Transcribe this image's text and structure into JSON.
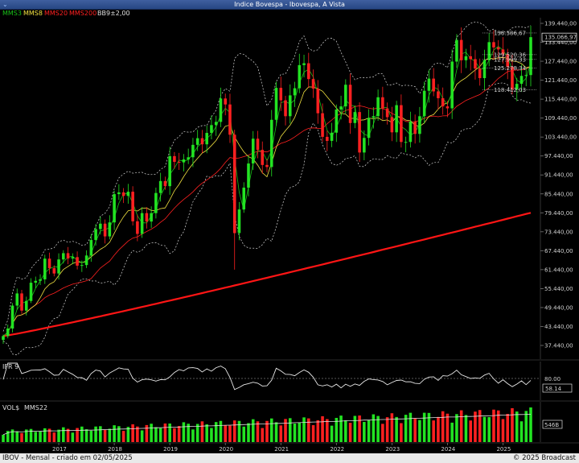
{
  "window": {
    "title": "Indice Bovespa - Ibovespa, A Vista",
    "menu_icon": "chevron-down-icon"
  },
  "legend": {
    "mms3": "MMS3",
    "mms8": "MMS8",
    "mms20": "MMS20",
    "mms200": "MMS200",
    "bb": "BB9±2,00"
  },
  "colors": {
    "up": "#22e322",
    "down": "#ff2020",
    "mms3": "#18c018",
    "mms8": "#f0e040",
    "mms20": "#ff2020",
    "mms200": "#ff1515",
    "bb": "#d8d8d8",
    "ifr": "#e8e8e8",
    "vol_avg": "#e0e0e0"
  },
  "ifr_panel": {
    "label": "IFR 9",
    "level_label": "80.00",
    "value_label": "58.14"
  },
  "vol_panel": {
    "label": "VOL$",
    "avg_label": "MMS22",
    "value_label": "546B"
  },
  "footer": {
    "left": "IBOV - Mensal - criado em 02/05/2025",
    "right": "© 2025 Broadcast"
  },
  "chart_data": {
    "type": "candlestick",
    "title": "Indice Bovespa - Ibovespa, A Vista",
    "price_axis": {
      "ticks": [
        "139.440,00",
        "133.440,00",
        "127.440,00",
        "121.440,00",
        "115.440,00",
        "109.440,00",
        "103.440,00",
        "97.440,00",
        "91.440,00",
        "85.440,00",
        "79.440,00",
        "73.440,00",
        "67.440,00",
        "61.440,00",
        "55.440,00",
        "49.440,00",
        "43.440,00",
        "37.440,00"
      ],
      "tick_values": [
        139440,
        133440,
        127440,
        121440,
        115440,
        109440,
        103440,
        97440,
        91440,
        85440,
        79440,
        73440,
        67440,
        61440,
        55440,
        49440,
        43440,
        37440
      ],
      "ylim": [
        35000,
        141000
      ]
    },
    "x_axis": {
      "labels": [
        "2017",
        "2018",
        "2019",
        "2020",
        "2021",
        "2022",
        "2023",
        "2024",
        "2025"
      ],
      "first_bar": "2016-01",
      "last_bar": "2025-04"
    },
    "last_price_label": "135.066,97",
    "annotations": [
      {
        "label": "136.386,67",
        "value": 136386.67
      },
      {
        "label": "129.520,36",
        "value": 129520.36
      },
      {
        "label": "127.999,33",
        "value": 127999.33
      },
      {
        "label": "125.278,34",
        "value": 125278.34
      },
      {
        "label": "118.412,03",
        "value": 118412.03
      }
    ],
    "closes": [
      40405,
      42793,
      50055,
      53910,
      48471,
      51527,
      57308,
      57901,
      58367,
      64924,
      61906,
      60227,
      64670,
      66661,
      64984,
      65403,
      62711,
      62900,
      65920,
      70835,
      74293,
      76004,
      71970,
      76402,
      85353,
      85913,
      84795,
      86115,
      76753,
      72763,
      79342,
      76677,
      79342,
      85719,
      89504,
      87887,
      97394,
      95584,
      95415,
      96353,
      97030,
      100967,
      103066,
      101135,
      104745,
      107220,
      108233,
      115645,
      113760,
      104172,
      73019,
      80506,
      87403,
      95056,
      102912,
      99369,
      94603,
      93952,
      108893,
      119017,
      115067,
      110035,
      116634,
      118894,
      126216,
      126802,
      121801,
      118781,
      110979,
      103501,
      102225,
      104822,
      112143,
      113142,
      119999,
      107876,
      111351,
      98542,
      103165,
      109523,
      110037,
      116037,
      112486,
      109735,
      104932,
      113532,
      101882,
      101882,
      108335,
      104432,
      110032,
      118087,
      121943,
      117893,
      115741,
      113144,
      112532,
      127331,
      134185,
      127752,
      129020,
      128106,
      125124,
      122098,
      127792,
      133490,
      131816,
      131185,
      129713,
      125668,
      118533,
      120283,
      122799,
      123065,
      135067
    ]
  }
}
